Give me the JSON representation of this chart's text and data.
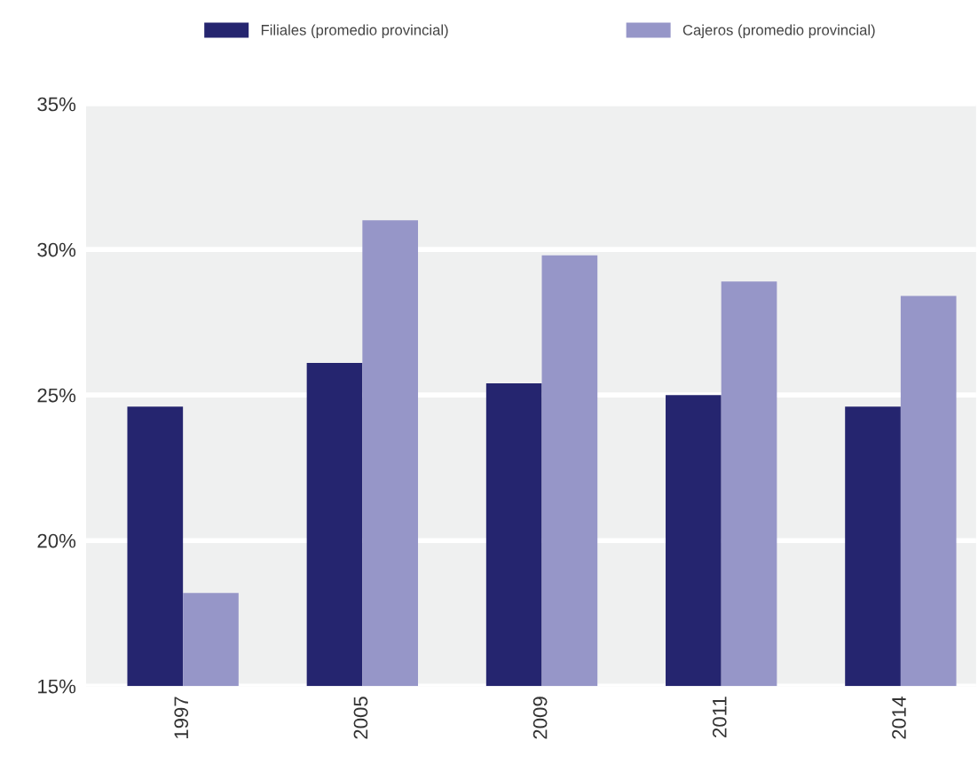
{
  "chart_data": {
    "type": "bar",
    "categories": [
      "1997",
      "2005",
      "2009",
      "2011",
      "2014"
    ],
    "series": [
      {
        "name": "Filiales (promedio provincial)",
        "color": "#25256f",
        "values": [
          24.6,
          26.1,
          25.4,
          25.0,
          24.6
        ]
      },
      {
        "name": "Cajeros (promedio provincial)",
        "color": "#9696c8",
        "values": [
          18.2,
          31.0,
          29.8,
          28.9,
          28.4
        ]
      }
    ],
    "ylim": [
      15,
      35
    ],
    "yticks": [
      {
        "value": 15,
        "label": "15%"
      },
      {
        "value": 20,
        "label": "20%"
      },
      {
        "value": 25,
        "label": "25%"
      },
      {
        "value": 30,
        "label": "30%"
      },
      {
        "value": 35,
        "label": "35%"
      }
    ],
    "grid": "y",
    "legend": "top"
  }
}
